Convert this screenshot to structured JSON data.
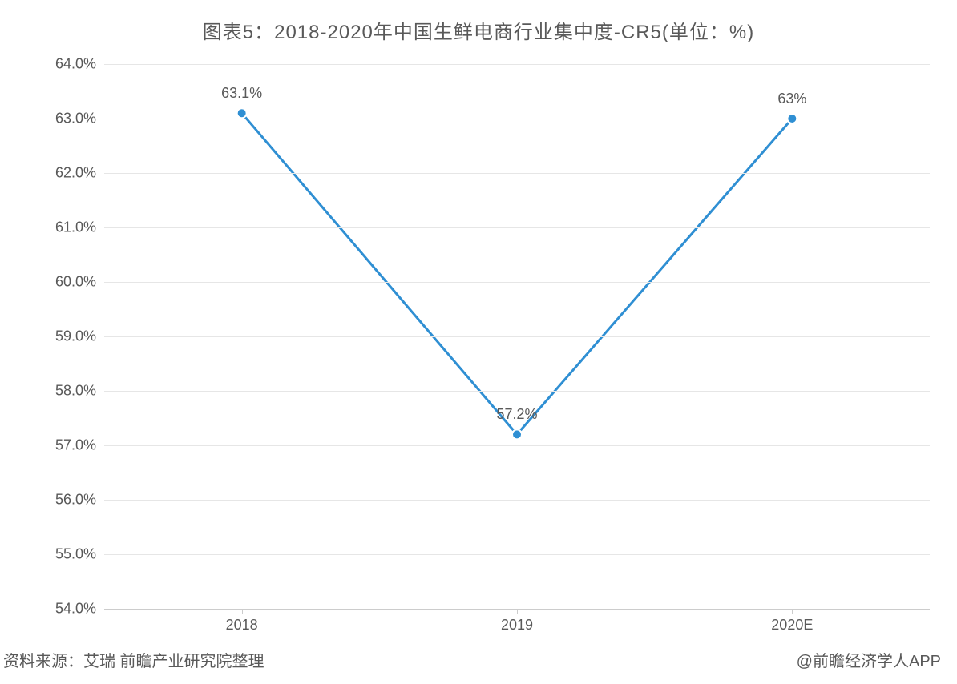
{
  "title": "图表5：2018-2020年中国生鲜电商行业集中度-CR5(单位：%)",
  "source_left": "资料来源：艾瑞 前瞻产业研究院整理",
  "source_right": "@前瞻经济学人APP",
  "chart": {
    "type": "line",
    "background_color": "#ffffff",
    "grid_color": "#e6e6e6",
    "axis_color": "#cccccc",
    "text_color": "#595959",
    "title_fontsize": 24,
    "label_fontsize": 18,
    "footer_fontsize": 20,
    "line_color": "#2f8fd3",
    "line_width": 3,
    "marker_radius": 6,
    "marker_fill": "#2f8fd3",
    "marker_stroke": "#ffffff",
    "marker_stroke_width": 2,
    "ylim": [
      54.0,
      64.0
    ],
    "ytick_step": 1.0,
    "y_tick_format_decimals": 1,
    "y_tick_suffix": "%",
    "categories": [
      "2018",
      "2019",
      "2020E"
    ],
    "values": [
      63.1,
      57.2,
      63.0
    ],
    "value_labels": [
      "63.1%",
      "57.2%",
      "63%"
    ],
    "label_dy": -14
  }
}
